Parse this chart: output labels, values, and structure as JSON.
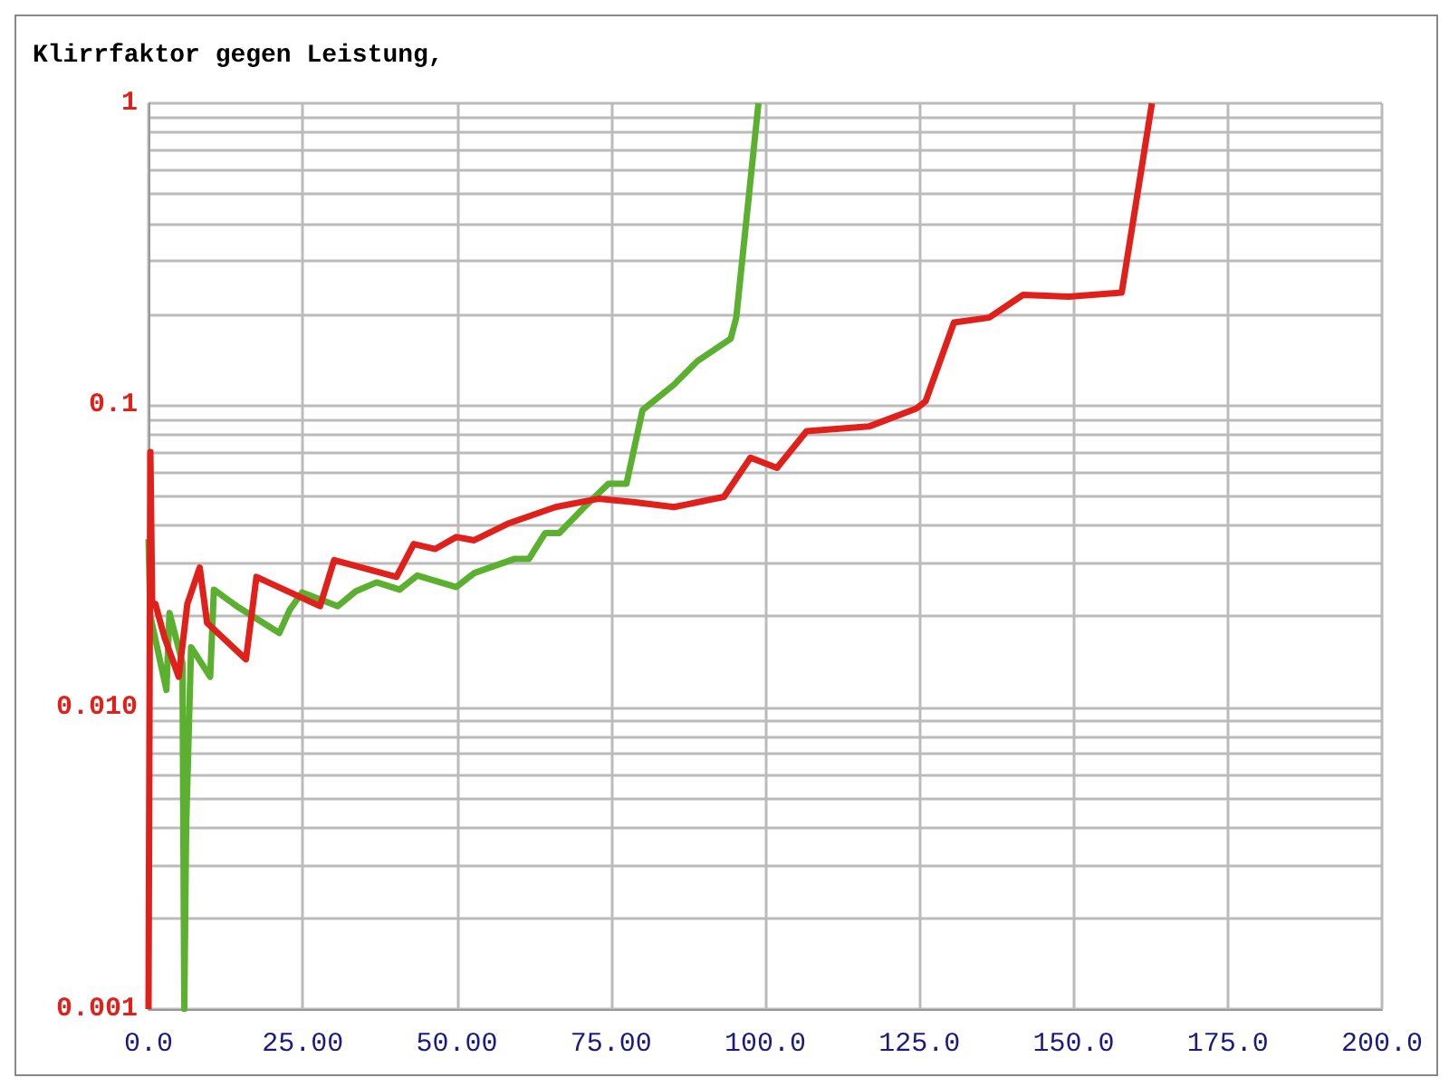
{
  "chart_data": {
    "type": "line",
    "title": "Klirrfaktor gegen Leistung,",
    "xlim": [
      0,
      200
    ],
    "xticks": [
      {
        "value": 0,
        "label": "0.0"
      },
      {
        "value": 25,
        "label": "25.00"
      },
      {
        "value": 50,
        "label": "50.00"
      },
      {
        "value": 75,
        "label": "75.00"
      },
      {
        "value": 100,
        "label": "100.0"
      },
      {
        "value": 125,
        "label": "125.0"
      },
      {
        "value": 150,
        "label": "150.0"
      },
      {
        "value": 175,
        "label": "175.0"
      },
      {
        "value": 200,
        "label": "200.0"
      }
    ],
    "ylim": [
      0.001,
      1
    ],
    "yticks": [
      {
        "value": 0.001,
        "label": "0.001"
      },
      {
        "value": 0.01,
        "label": "0.010"
      },
      {
        "value": 0.1,
        "label": "0.1"
      },
      {
        "value": 1,
        "label": "1"
      }
    ],
    "log": "y",
    "grid": true,
    "marker": "none",
    "line_style": "solid",
    "series": [
      {
        "color": "#5cb030",
        "x": [
          0,
          0.3,
          2.9,
          3.4,
          5.5,
          5.8,
          6.1,
          6.9,
          10.0,
          10.6,
          14.3,
          21.2,
          22.9,
          24.9,
          30.7,
          33.6,
          37.0,
          40.7,
          43.6,
          49.9,
          52.8,
          59.4,
          61.7,
          64.3,
          66.6,
          70.9,
          74.6,
          77.5,
          80.1,
          85.2,
          89.0,
          94.4,
          95.3,
          98.9
        ],
        "values": [
          0.036,
          0.02,
          0.0114,
          0.0205,
          0.014,
          0.001,
          0.004,
          0.0158,
          0.0126,
          0.0245,
          0.0216,
          0.0176,
          0.021,
          0.024,
          0.0216,
          0.0242,
          0.0259,
          0.0245,
          0.0273,
          0.025,
          0.0278,
          0.031,
          0.031,
          0.0377,
          0.0377,
          0.0465,
          0.055,
          0.055,
          0.0963,
          0.117,
          0.14,
          0.166,
          0.195,
          1.0
        ]
      },
      {
        "color": "#e0201a",
        "x": [
          0,
          0.3,
          0.6,
          1.1,
          2.6,
          4.9,
          6.3,
          8.3,
          9.5,
          15.8,
          17.5,
          27.8,
          30.1,
          40.2,
          43.0,
          46.5,
          49.9,
          52.8,
          58.5,
          66.0,
          72.9,
          78.6,
          85.2,
          93.3,
          97.6,
          101.9,
          106.7,
          116.8,
          124.5,
          126.0,
          130.6,
          136.3,
          141.8,
          149.2,
          157.8,
          162.7
        ],
        "values": [
          0.001,
          0.07,
          0.022,
          0.022,
          0.017,
          0.0126,
          0.022,
          0.029,
          0.019,
          0.0144,
          0.027,
          0.0216,
          0.0307,
          0.027,
          0.0347,
          0.0334,
          0.0366,
          0.0357,
          0.0407,
          0.046,
          0.049,
          0.0478,
          0.046,
          0.0497,
          0.067,
          0.062,
          0.082,
          0.085,
          0.0975,
          0.103,
          0.188,
          0.195,
          0.232,
          0.229,
          0.236,
          1.0
        ]
      }
    ]
  }
}
